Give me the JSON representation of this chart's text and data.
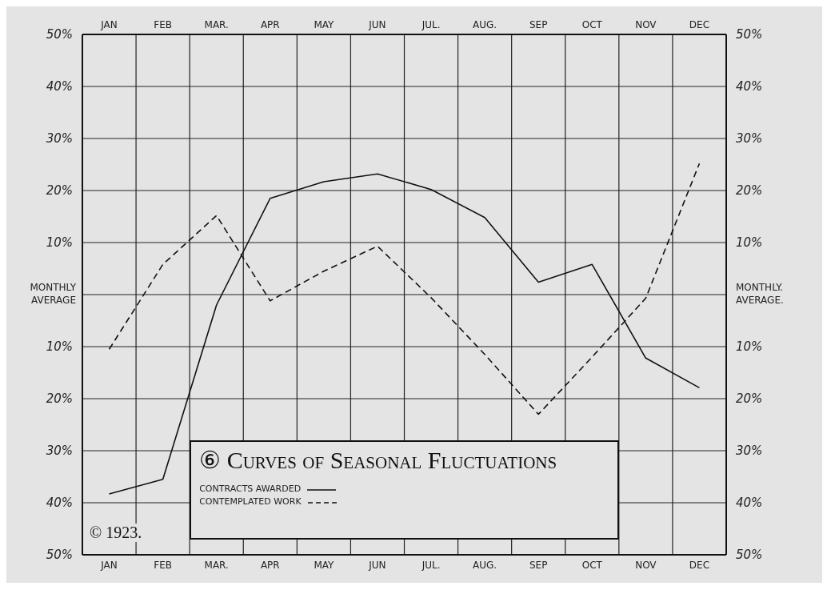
{
  "chart_data": {
    "type": "line",
    "title": "⑥ Curves of Seasonal Fluctuations",
    "categories": [
      "JAN",
      "FEB",
      "MAR.",
      "APR",
      "MAY",
      "JUN",
      "JUL.",
      "AUG.",
      "SEP",
      "OCT",
      "NOV",
      "DEC"
    ],
    "series": [
      {
        "name": "CONTRACTS AWARDED",
        "color": "#111111",
        "line_style": "solid",
        "values": [
          -38.3,
          -35.5,
          -2,
          18.5,
          21.7,
          23.2,
          20.2,
          14.8,
          2.4,
          5.8,
          -12.2,
          -17.9
        ]
      },
      {
        "name": "CONTEMPLATED WORK",
        "color": "#111111",
        "line_style": "dashed",
        "values": [
          -10.5,
          5.8,
          15.2,
          -1.2,
          4.5,
          9.3,
          -0.6,
          -11.5,
          -23,
          -12,
          -0.7,
          25.2
        ]
      }
    ],
    "ylim": [
      -50,
      50
    ],
    "yticks": [
      {
        "value": 50,
        "label": "50%"
      },
      {
        "value": 40,
        "label": "40%"
      },
      {
        "value": 30,
        "label": "30%"
      },
      {
        "value": 20,
        "label": "20%"
      },
      {
        "value": 10,
        "label": "10%"
      },
      {
        "value": 0,
        "label": "MONTHLY AVERAGE"
      },
      {
        "value": -10,
        "label": "10%"
      },
      {
        "value": -20,
        "label": "20%"
      },
      {
        "value": -30,
        "label": "30%"
      },
      {
        "value": -40,
        "label": "40%"
      },
      {
        "value": -50,
        "label": "50%"
      }
    ],
    "y2lim": [
      -50,
      50
    ],
    "y2ticks": [
      {
        "value": 50,
        "label": "50%"
      },
      {
        "value": 40,
        "label": "40%"
      },
      {
        "value": 30,
        "label": "30%"
      },
      {
        "value": 20,
        "label": "20%"
      },
      {
        "value": 10,
        "label": "10%"
      },
      {
        "value": 0,
        "label": "MONTHLY. AVERAGE."
      },
      {
        "value": -10,
        "label": "10%"
      },
      {
        "value": -20,
        "label": "20%"
      },
      {
        "value": -30,
        "label": "30%"
      },
      {
        "value": -40,
        "label": "40%"
      },
      {
        "value": -50,
        "label": "50%"
      }
    ],
    "annotations": [
      "© 1923."
    ],
    "grid": true,
    "legend": "bottom",
    "marker": "none"
  }
}
